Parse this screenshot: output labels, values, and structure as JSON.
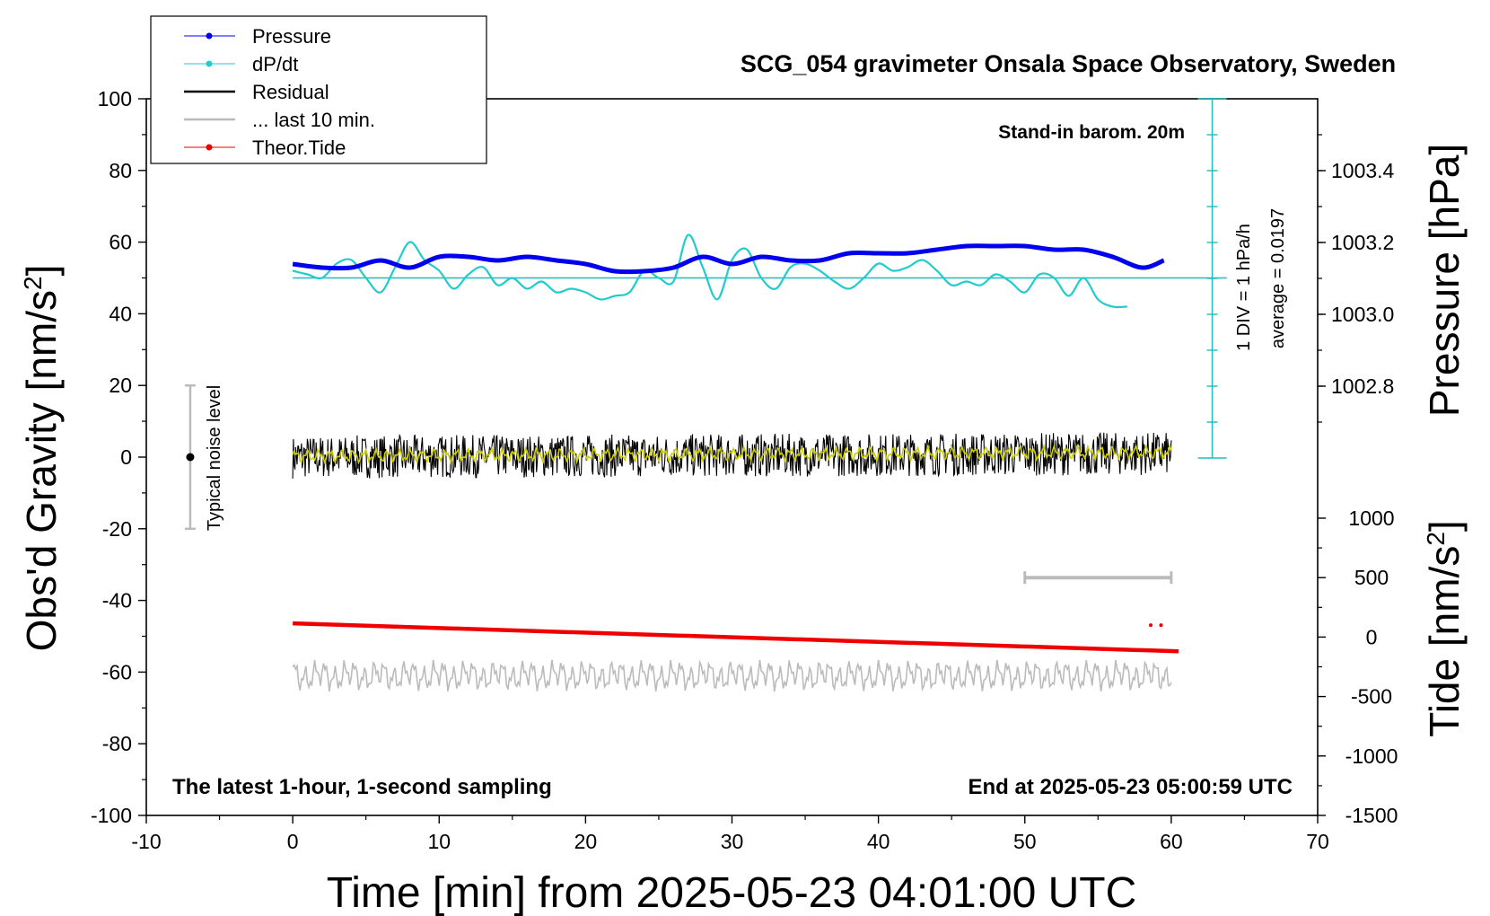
{
  "chart_data": {
    "type": "line",
    "title": "SCG_054 gravimeter Onsala Space Observatory, Sweden",
    "xlabel": "Time [min] from 2025-05-23 04:01:00 UTC",
    "ylabel_left": "Obs'd Gravity [nm/s",
    "ylabel_left_sup": "2",
    "ylabel_left_tail": "]",
    "ylabel_right_pressure": "Pressure [hPa]",
    "ylabel_right_tide": "Tide [nm/s",
    "ylabel_right_tide_sup": "2",
    "ylabel_right_tide_tail": "]",
    "xlim": [
      -10,
      70
    ],
    "ylim": [
      -100,
      100
    ],
    "x_ticks": [
      "-10",
      "0",
      "10",
      "20",
      "30",
      "40",
      "50",
      "60",
      "70"
    ],
    "y_ticks": [
      "100",
      "80",
      "60",
      "40",
      "20",
      "0",
      "-20",
      "-40",
      "-60",
      "-80",
      "-100"
    ],
    "pressure_ticks": [
      "1003.4",
      "1003.2",
      "1003.0",
      "1002.8"
    ],
    "pressure_range": [
      1002.6,
      1003.6
    ],
    "tide_ticks": [
      "1000",
      "500",
      "0",
      "-500",
      "-1000",
      "-1500"
    ],
    "tide_range": [
      -1500,
      1500
    ],
    "grid": false,
    "legend_position": "top-left",
    "legend": [
      {
        "label": "Pressure",
        "color": "#0000ee",
        "marker": "dot"
      },
      {
        "label": "dP/dt",
        "color": "#22cccc",
        "marker": "dot"
      },
      {
        "label": "Residual",
        "color": "#000000",
        "marker": "line"
      },
      {
        "label": "... last 10 min.",
        "color": "#bbbbbb",
        "marker": "line"
      },
      {
        "label": "Theor.Tide",
        "color": "#ee0000",
        "marker": "dot"
      }
    ],
    "annotations": {
      "barometer": "Stand-in barom. 20m",
      "div_label": "1 DIV = 1 hPa/h",
      "average_label": "average = 0.0197",
      "noise_label": "Typical noise level",
      "bottom_left": "The latest 1-hour, 1-second sampling",
      "bottom_right": "End at 2025-05-23 05:00:59 UTC"
    },
    "series": [
      {
        "name": "Pressure",
        "unit": "hPa",
        "x": [
          0,
          2,
          4,
          6,
          8,
          10,
          12,
          14,
          16,
          18,
          20,
          22,
          24,
          26,
          28,
          30,
          32,
          34,
          36,
          38,
          40,
          42,
          44,
          46,
          48,
          50,
          52,
          54,
          56,
          58,
          59.5
        ],
        "values": [
          1003.14,
          1003.13,
          1003.13,
          1003.15,
          1003.13,
          1003.16,
          1003.16,
          1003.15,
          1003.16,
          1003.15,
          1003.14,
          1003.12,
          1003.12,
          1003.13,
          1003.16,
          1003.14,
          1003.16,
          1003.15,
          1003.15,
          1003.17,
          1003.17,
          1003.17,
          1003.18,
          1003.19,
          1003.19,
          1003.19,
          1003.18,
          1003.18,
          1003.16,
          1003.13,
          1003.15
        ]
      },
      {
        "name": "dP/dt",
        "unit": "nm/s2",
        "x": [
          0,
          1,
          2,
          3,
          4,
          5,
          6,
          7,
          8,
          9,
          10,
          11,
          12,
          13,
          14,
          15,
          16,
          17,
          18,
          19,
          20,
          21,
          22,
          23,
          24,
          25,
          26,
          27,
          28,
          29,
          30,
          31,
          32,
          33,
          34,
          35,
          36,
          37,
          38,
          39,
          40,
          41,
          42,
          43,
          44,
          45,
          46,
          47,
          48,
          49,
          50,
          51,
          52,
          53,
          54,
          55,
          56,
          57
        ],
        "values": [
          52,
          51,
          50,
          54,
          55,
          50,
          46,
          53,
          60,
          55,
          52,
          47,
          51,
          53,
          48,
          50,
          47,
          49,
          46,
          47,
          46,
          44,
          45,
          46,
          52,
          50,
          49,
          62,
          53,
          44,
          55,
          58,
          50,
          47,
          53,
          54,
          52,
          49,
          47,
          50,
          54,
          52,
          53,
          55,
          52,
          48,
          49,
          48,
          51,
          49,
          46,
          51,
          50,
          45,
          50,
          44,
          42,
          42
        ]
      },
      {
        "name": "Residual",
        "unit": "nm/s2",
        "x": [
          0,
          10,
          20,
          30,
          40,
          50,
          60
        ],
        "values": [
          0,
          0,
          0,
          0,
          0,
          0,
          0.5
        ]
      },
      {
        "name": "... last 10 min.",
        "unit": "nm/s2",
        "x": [
          0,
          60
        ],
        "values": [
          -61,
          -61
        ]
      },
      {
        "name": "Theor.Tide",
        "unit": "nm/s2",
        "x": [
          0,
          60.5
        ],
        "values": [
          115,
          -120
        ]
      }
    ]
  }
}
